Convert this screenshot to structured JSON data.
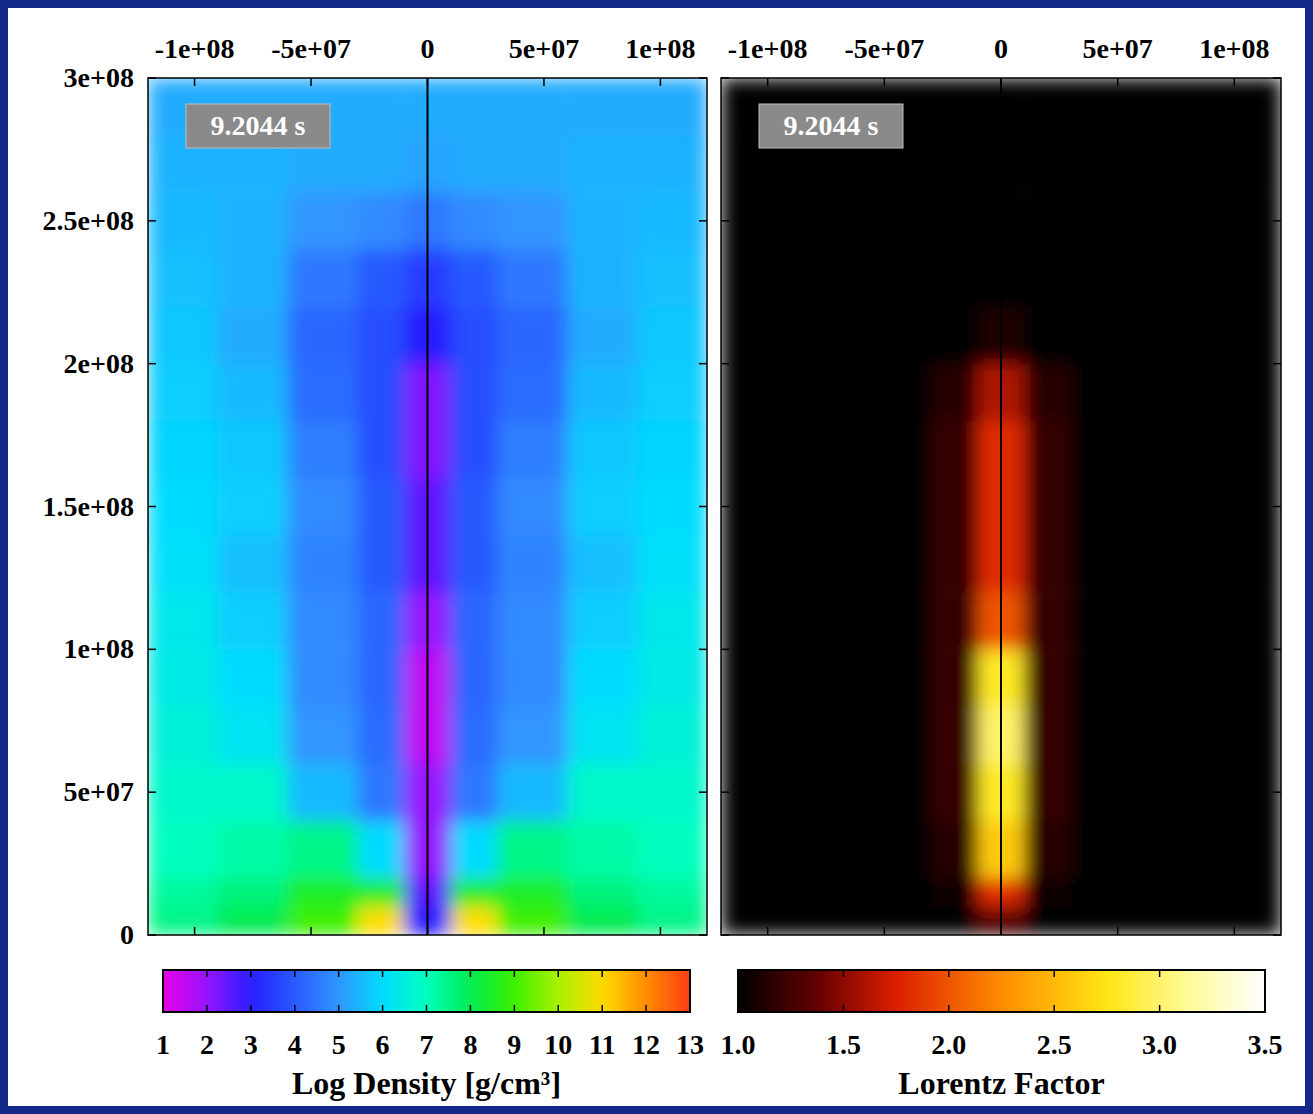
{
  "chart_data": [
    {
      "type": "heatmap",
      "time_label": "9.2044 s",
      "x_edges": [
        -120000000,
        -90000000,
        -60000000,
        -30000000,
        -10000000,
        10000000,
        30000000,
        60000000,
        90000000,
        120000000
      ],
      "y_edges": [
        0,
        10000000,
        20000000,
        40000000,
        60000000,
        80000000,
        100000000,
        120000000,
        140000000,
        160000000,
        180000000,
        200000000,
        220000000,
        240000000,
        260000000,
        280000000,
        300000000
      ],
      "cells": [
        [
          7.5,
          8,
          9,
          11,
          3,
          11,
          9,
          8,
          7.5
        ],
        [
          7.3,
          7.6,
          8.5,
          8.5,
          2.5,
          8.5,
          8.5,
          7.6,
          7.3
        ],
        [
          7,
          7.2,
          7.5,
          6,
          2,
          6,
          7.5,
          7.2,
          7
        ],
        [
          6.8,
          6.8,
          5.5,
          4.5,
          2,
          4.5,
          5.5,
          6.8,
          6.8
        ],
        [
          6.6,
          6.2,
          5,
          4.3,
          1.5,
          4.3,
          5,
          6.2,
          6.6
        ],
        [
          6.4,
          6,
          4.8,
          4.2,
          1.5,
          4.2,
          4.8,
          6,
          6.4
        ],
        [
          6.3,
          5.8,
          4.8,
          4.2,
          2,
          4.2,
          4.8,
          5.8,
          6.3
        ],
        [
          6.1,
          5.6,
          4.7,
          4,
          2.5,
          4,
          4.7,
          5.6,
          6.1
        ],
        [
          6,
          5.8,
          4.8,
          4,
          2.5,
          4,
          4.8,
          5.8,
          6
        ],
        [
          5.9,
          5.7,
          4.6,
          3.8,
          2.2,
          3.8,
          4.6,
          5.7,
          5.9
        ],
        [
          5.8,
          5.5,
          4.3,
          3.8,
          2.2,
          3.8,
          4.3,
          5.5,
          5.8
        ],
        [
          5.7,
          5.3,
          4.2,
          3.8,
          3,
          3.8,
          4.2,
          5.3,
          5.7
        ],
        [
          5.6,
          5.4,
          4.5,
          4,
          3.5,
          4,
          4.5,
          5.4,
          5.6
        ],
        [
          5.5,
          5.4,
          5,
          4.8,
          4.5,
          4.8,
          5,
          5.4,
          5.5
        ],
        [
          5.4,
          5.4,
          5.3,
          5.3,
          5.2,
          5.3,
          5.3,
          5.4,
          5.4
        ],
        [
          5.3,
          5.3,
          5.3,
          5.3,
          5.3,
          5.3,
          5.3,
          5.3,
          5.3
        ]
      ],
      "xlim": [
        -120000000,
        120000000
      ],
      "ylim": [
        0,
        300000000
      ],
      "xticks": [
        {
          "value": -100000000,
          "label": "-1e+08"
        },
        {
          "value": -50000000,
          "label": "-5e+07"
        },
        0,
        {
          "value": 50000000,
          "label": "5e+07"
        },
        {
          "value": 100000000,
          "label": "1e+08"
        }
      ],
      "yticks": [
        0,
        {
          "value": 50000000,
          "label": "5e+07"
        },
        {
          "value": 100000000,
          "label": "1e+08"
        },
        {
          "value": 150000000,
          "label": "1.5e+08"
        },
        {
          "value": 200000000,
          "label": "2e+08"
        },
        {
          "value": 250000000,
          "label": "2.5e+08"
        },
        {
          "value": 300000000,
          "label": "3e+08"
        }
      ],
      "colorbar": {
        "title": "Log Density [g/cm³]",
        "range": [
          1,
          13
        ],
        "ticks": [
          1,
          2,
          3,
          4,
          5,
          6,
          7,
          8,
          9,
          10,
          11,
          12,
          13
        ]
      }
    },
    {
      "type": "heatmap",
      "time_label": "9.2044 s",
      "x_edges": [
        -120000000,
        -90000000,
        -60000000,
        -30000000,
        -10000000,
        10000000,
        30000000,
        60000000,
        90000000,
        120000000
      ],
      "y_edges": [
        0,
        10000000,
        20000000,
        40000000,
        60000000,
        80000000,
        100000000,
        120000000,
        140000000,
        160000000,
        180000000,
        200000000,
        220000000,
        240000000,
        260000000,
        280000000,
        300000000
      ],
      "cells": [
        [
          1,
          1,
          1,
          1,
          1.3,
          1,
          1,
          1,
          1
        ],
        [
          1,
          1,
          1,
          1.05,
          1.8,
          1.05,
          1,
          1,
          1
        ],
        [
          1,
          1,
          1,
          1.15,
          2.6,
          1.15,
          1,
          1,
          1
        ],
        [
          1,
          1,
          1,
          1.2,
          2.8,
          1.2,
          1,
          1,
          1
        ],
        [
          1,
          1,
          1,
          1.2,
          3,
          1.2,
          1,
          1,
          1
        ],
        [
          1,
          1,
          1,
          1.2,
          2.8,
          1.2,
          1,
          1,
          1
        ],
        [
          1,
          1,
          1,
          1.2,
          2,
          1.2,
          1,
          1,
          1
        ],
        [
          1,
          1,
          1,
          1.2,
          1.8,
          1.2,
          1,
          1,
          1
        ],
        [
          1,
          1,
          1,
          1.2,
          1.8,
          1.2,
          1,
          1,
          1
        ],
        [
          1,
          1,
          1,
          1.2,
          1.8,
          1.2,
          1,
          1,
          1
        ],
        [
          1,
          1,
          1,
          1.15,
          1.6,
          1.15,
          1,
          1,
          1
        ],
        [
          1,
          1,
          1,
          1,
          1.1,
          1,
          1,
          1,
          1
        ],
        [
          1,
          1,
          1,
          1,
          1,
          1,
          1,
          1,
          1
        ],
        [
          1,
          1,
          1,
          1,
          1,
          1,
          1,
          1,
          1
        ],
        [
          1,
          1,
          1,
          1,
          1,
          1,
          1,
          1,
          1
        ],
        [
          1,
          1,
          1,
          1,
          1,
          1,
          1,
          1,
          1
        ]
      ],
      "xlim": [
        -120000000,
        120000000
      ],
      "ylim": [
        0,
        300000000
      ],
      "xticks": [
        {
          "value": -100000000,
          "label": "-1e+08"
        },
        {
          "value": -50000000,
          "label": "-5e+07"
        },
        0,
        {
          "value": 50000000,
          "label": "5e+07"
        },
        {
          "value": 100000000,
          "label": "1e+08"
        }
      ],
      "yticks": [
        0,
        {
          "value": 50000000,
          "label": "5e+07"
        },
        {
          "value": 100000000,
          "label": "1e+08"
        },
        {
          "value": 150000000,
          "label": "1.5e+08"
        },
        {
          "value": 200000000,
          "label": "2e+08"
        },
        {
          "value": 250000000,
          "label": "2.5e+08"
        },
        {
          "value": 300000000,
          "label": "3e+08"
        }
      ],
      "tick_labels": "x",
      "colorbar": {
        "title": "Lorentz Factor",
        "range": [
          1,
          3.5
        ],
        "ticks": [
          {
            "value": 1,
            "label": "1.0"
          },
          {
            "value": 1.5,
            "label": "1.5"
          },
          {
            "value": 2,
            "label": "2.0"
          },
          {
            "value": 2.5,
            "label": "2.5"
          },
          {
            "value": 3,
            "label": "3.0"
          },
          {
            "value": 3.5,
            "label": "3.5"
          }
        ]
      }
    }
  ]
}
